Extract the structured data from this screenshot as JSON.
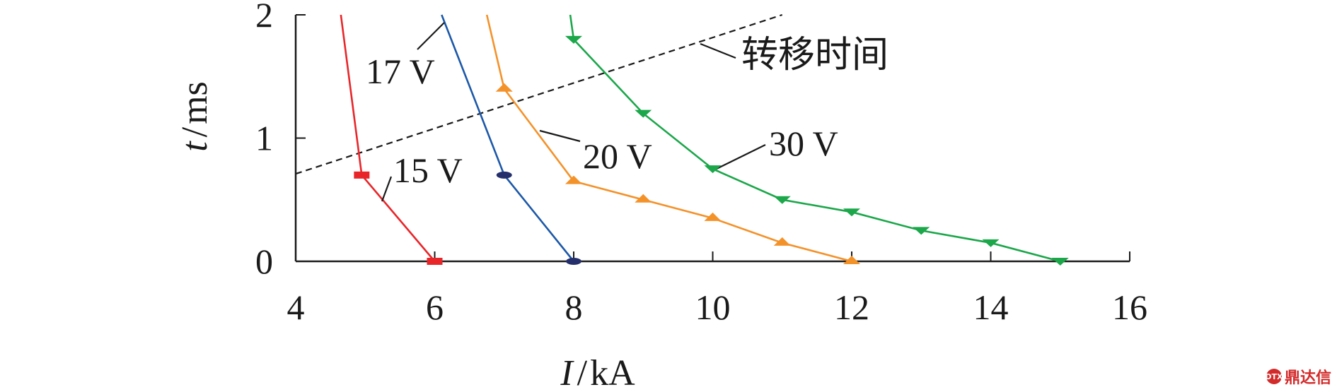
{
  "chart_data": {
    "type": "line",
    "xlabel_var": "I",
    "xlabel_unit": "kA",
    "ylabel_var": "t",
    "ylabel_unit": "ms",
    "xlim": [
      4,
      16
    ],
    "ylim": [
      0,
      2
    ],
    "xticks": [
      "4",
      "6",
      "8",
      "10",
      "12",
      "14",
      "16"
    ],
    "yticks": [
      "0",
      "1",
      "2"
    ],
    "grid": false,
    "series": [
      {
        "name": "15 V",
        "color": "#e8262a",
        "marker": "square",
        "points": [
          [
            4.65,
            2.0
          ],
          [
            4.95,
            0.7
          ],
          [
            6.0,
            0.0
          ]
        ],
        "marked": [
          [
            4.95,
            0.7
          ],
          [
            6.0,
            0.0
          ]
        ]
      },
      {
        "name": "17 V",
        "color": "#1c58a8",
        "marker": "circle",
        "points": [
          [
            6.1,
            2.0
          ],
          [
            7.0,
            0.7
          ],
          [
            8.0,
            0.0
          ]
        ],
        "marked": [
          [
            7.0,
            0.7
          ],
          [
            8.0,
            0.0
          ]
        ]
      },
      {
        "name": "20 V",
        "color": "#f4922a",
        "marker": "triangle-up",
        "points": [
          [
            6.75,
            2.0
          ],
          [
            7.0,
            1.4
          ],
          [
            8.0,
            0.65
          ],
          [
            9.0,
            0.5
          ],
          [
            10.0,
            0.35
          ],
          [
            11.0,
            0.15
          ],
          [
            12.0,
            0.0
          ]
        ],
        "marked": [
          [
            7.0,
            1.4
          ],
          [
            8.0,
            0.65
          ],
          [
            9.0,
            0.5
          ],
          [
            10.0,
            0.35
          ],
          [
            11.0,
            0.15
          ],
          [
            12.0,
            0.0
          ]
        ]
      },
      {
        "name": "30 V",
        "color": "#1ba74a",
        "marker": "triangle-down",
        "points": [
          [
            7.95,
            2.0
          ],
          [
            8.0,
            1.8
          ],
          [
            9.0,
            1.2
          ],
          [
            10.0,
            0.75
          ],
          [
            11.0,
            0.5
          ],
          [
            12.0,
            0.4
          ],
          [
            13.0,
            0.25
          ],
          [
            14.0,
            0.15
          ],
          [
            15.0,
            0.0
          ]
        ],
        "marked": [
          [
            8.0,
            1.8
          ],
          [
            9.0,
            1.2
          ],
          [
            10.0,
            0.75
          ],
          [
            11.0,
            0.5
          ],
          [
            12.0,
            0.4
          ],
          [
            13.0,
            0.25
          ],
          [
            14.0,
            0.15
          ],
          [
            15.0,
            0.0
          ]
        ]
      }
    ],
    "reference_line": {
      "name": "转移时间",
      "style": "dashed",
      "color": "#1a1a1a",
      "points": [
        [
          4.0,
          0.71
        ],
        [
          11.0,
          2.0
        ]
      ]
    },
    "annotations": [
      {
        "text": "15 V",
        "series": "15 V"
      },
      {
        "text": "17 V",
        "series": "17 V"
      },
      {
        "text": "20 V",
        "series": "20 V"
      },
      {
        "text": "30 V",
        "series": "30 V"
      },
      {
        "text": "转移时间",
        "series": "转移时间"
      }
    ]
  },
  "watermark": {
    "logo_text": "DTX",
    "text": "鼎达信"
  }
}
